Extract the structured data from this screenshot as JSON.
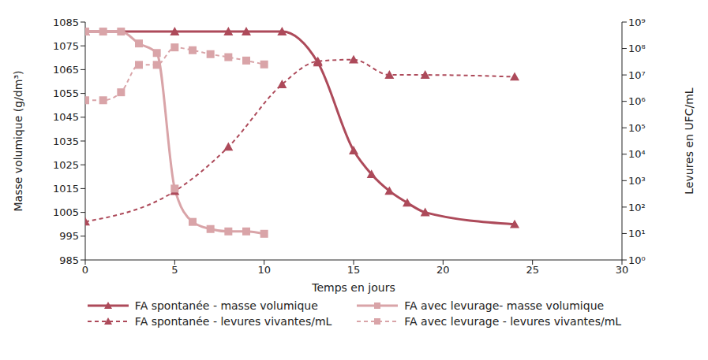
{
  "chart_data": {
    "type": "line",
    "xlabel": "Temps en jours",
    "ylabel": "Masse volumique (g/dm³)",
    "y2label": "Levures en UFC/mL",
    "xlim": [
      0,
      30
    ],
    "xticks": [
      0,
      5,
      10,
      15,
      20,
      25,
      30
    ],
    "ylim": [
      985,
      1085
    ],
    "yticks": [
      985,
      995,
      1005,
      1015,
      1025,
      1035,
      1045,
      1055,
      1065,
      1075,
      1085
    ],
    "y2lim": [
      1,
      1000000000
    ],
    "y2ticks": [
      {
        "value": 1,
        "label": "10⁰"
      },
      {
        "value": 10,
        "label": "10¹"
      },
      {
        "value": 100,
        "label": "10²"
      },
      {
        "value": 1000,
        "label": "10³"
      },
      {
        "value": 10000,
        "label": "10⁴"
      },
      {
        "value": 100000,
        "label": "10⁵"
      },
      {
        "value": 1000000,
        "label": "10⁶"
      },
      {
        "value": 10000000,
        "label": "10⁷"
      },
      {
        "value": 100000000,
        "label": "10⁸"
      },
      {
        "value": 1000000000,
        "label": "10⁹"
      }
    ],
    "log": "y2",
    "grid": false,
    "legend": "bottom",
    "series": [
      {
        "name": "FA spontanée - masse volumique",
        "color": "#ad4a5a",
        "marker": "triangle",
        "line_style": "solid",
        "axis": "y",
        "x": [
          0,
          5,
          8,
          9,
          11,
          13,
          15,
          16,
          17,
          18,
          19,
          24
        ],
        "values": [
          1081,
          1081,
          1081,
          1081,
          1081,
          1068,
          1031,
          1021,
          1014,
          1009,
          1005,
          1000
        ]
      },
      {
        "name": "FA spontanée - levures vivantes/mL",
        "color": "#ad4a5a",
        "marker": "triangle",
        "line_style": "dashed",
        "axis": "y2",
        "x": [
          0,
          5,
          8,
          11,
          13,
          15,
          17,
          19,
          24
        ],
        "values": [
          28,
          400,
          19000,
          4400000,
          33000000,
          38000000,
          10000000,
          10000000,
          8500000
        ]
      },
      {
        "name": "FA avec levurage- masse volumique",
        "color": "#d9a4a8",
        "marker": "square",
        "line_style": "solid",
        "axis": "y",
        "x": [
          0,
          1,
          2,
          3,
          4,
          5,
          6,
          7,
          8,
          9,
          10
        ],
        "values": [
          1081,
          1081,
          1081,
          1076,
          1072,
          1015,
          1001,
          998,
          997,
          997,
          996
        ]
      },
      {
        "name": "FA avec levurage - levures vivantes/mL",
        "color": "#d9a4a8",
        "marker": "square",
        "line_style": "dashed",
        "axis": "y2",
        "x": [
          0,
          1,
          2,
          3,
          4,
          5,
          6,
          7,
          8,
          9,
          10
        ],
        "values": [
          1100000,
          1100000,
          2200000,
          24000000,
          24000000,
          110000000,
          86000000,
          61000000,
          47000000,
          35000000,
          25000000
        ]
      }
    ]
  }
}
